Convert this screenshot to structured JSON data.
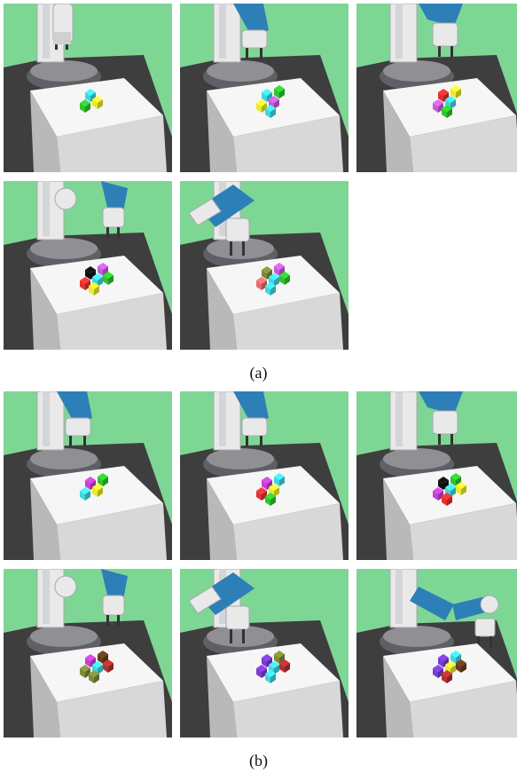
{
  "captions": {
    "a": "(a)",
    "b": "(b)"
  },
  "colors": {
    "background": "#7ed695",
    "floor": "#3e3e3e",
    "table_top": "#f6f6f6",
    "table_front": "#d8d8d8",
    "table_side": "#b9b9b9",
    "robot_white": "#e9e9ea",
    "robot_gray": "#a9a9ad",
    "robot_base": "#8f8f94",
    "robot_base_dark": "#5f6066",
    "arm_blue": "#2d7fb8",
    "gripper": "#fbfbfb"
  },
  "group_a": {
    "label": "(a)",
    "frames": [
      {
        "name": "a1",
        "arm": "up-low",
        "blocks": [
          "#3fd6e0",
          "#eaea2b",
          "#2ec52e"
        ]
      },
      {
        "name": "a2",
        "arm": "reach-mid",
        "blocks": [
          "#3fd6e0",
          "#c85ad8",
          "#eaea2b",
          "#2ec52e",
          "#3fd6e0"
        ]
      },
      {
        "name": "a3",
        "arm": "reach-right",
        "blocks": [
          "#e03030",
          "#3fd6e0",
          "#c85ad8",
          "#eaea2b",
          "#2ec52e"
        ]
      },
      {
        "name": "a4",
        "arm": "two-arms",
        "blocks": [
          "#111111",
          "#3fd6e0",
          "#e03030",
          "#c85ad8",
          "#eaea2b",
          "#2ec52e"
        ]
      },
      {
        "name": "a5",
        "arm": "swing",
        "blocks": [
          "#7d8a3a",
          "#3fd6e0",
          "#e36a6a",
          "#c85ad8",
          "#3fd6e0",
          "#2ec52e"
        ]
      }
    ]
  },
  "group_b": {
    "label": "(b)",
    "frames": [
      {
        "name": "b1",
        "arm": "reach-low",
        "blocks": [
          "#c53fd0",
          "#eaea2b",
          "#3fd6e0",
          "#2ec52e"
        ]
      },
      {
        "name": "b2",
        "arm": "reach-mid",
        "blocks": [
          "#c53fd0",
          "#eaea2b",
          "#e03030",
          "#3fd6e0",
          "#2ec52e"
        ]
      },
      {
        "name": "b3",
        "arm": "reach-right",
        "blocks": [
          "#111111",
          "#3fd6e0",
          "#c53fd0",
          "#2ec52e",
          "#e03030",
          "#eaea2b"
        ]
      },
      {
        "name": "b4",
        "arm": "two-arms",
        "blocks": [
          "#c53fd0",
          "#3fd6e0",
          "#7d8a3a",
          "#6b3b1b",
          "#7d8a3a",
          "#b53030"
        ]
      },
      {
        "name": "b5",
        "arm": "swing",
        "blocks": [
          "#7b3ad1",
          "#3fd6e0",
          "#7b3ad1",
          "#7d8a3a",
          "#3fd6e0",
          "#b53030"
        ]
      },
      {
        "name": "b6",
        "arm": "extend",
        "blocks": [
          "#7b3ad1",
          "#eaea2b",
          "#7b3ad1",
          "#3fd6e0",
          "#b53030",
          "#6b3b1b"
        ]
      }
    ]
  }
}
